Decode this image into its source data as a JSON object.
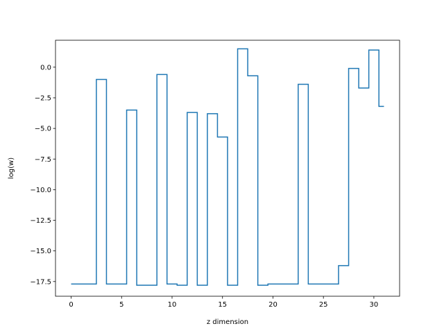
{
  "chart_data": {
    "type": "line",
    "drawstyle": "steps-mid",
    "xlabel": "z dimension",
    "ylabel": "log(w)",
    "xlim": [
      -1.55,
      32.55
    ],
    "ylim": [
      -18.7,
      2.2
    ],
    "xticks": [
      0,
      5,
      10,
      15,
      20,
      25,
      30
    ],
    "yticks": [
      0.0,
      -2.5,
      -5.0,
      -7.5,
      -10.0,
      -12.5,
      -15.0,
      -17.5
    ],
    "xtick_labels": [
      "0",
      "5",
      "10",
      "15",
      "20",
      "25",
      "30"
    ],
    "ytick_labels": [
      "0.0",
      "−2.5",
      "−5.0",
      "−7.5",
      "−10.0",
      "−12.5",
      "−15.0",
      "−17.5"
    ],
    "grid": false,
    "line_color": "#1f77b4",
    "series": [
      {
        "x": [
          0,
          1,
          2,
          3,
          4,
          5,
          6,
          7,
          8,
          9,
          10,
          11,
          12,
          13,
          14,
          15,
          16,
          17,
          18,
          19,
          20,
          21,
          22,
          23,
          24,
          25,
          26,
          27,
          28,
          29,
          30,
          31
        ],
        "values": [
          -17.7,
          -17.7,
          -17.7,
          -1.0,
          -17.7,
          -17.7,
          -3.5,
          -17.8,
          -17.8,
          -0.6,
          -17.7,
          -17.8,
          -3.7,
          -17.8,
          -3.8,
          -5.7,
          -17.8,
          1.5,
          -0.7,
          -17.8,
          -17.7,
          -17.7,
          -17.7,
          -1.4,
          -17.7,
          -17.7,
          -17.7,
          -16.2,
          -0.1,
          -1.7,
          1.4,
          -3.2
        ]
      }
    ]
  }
}
